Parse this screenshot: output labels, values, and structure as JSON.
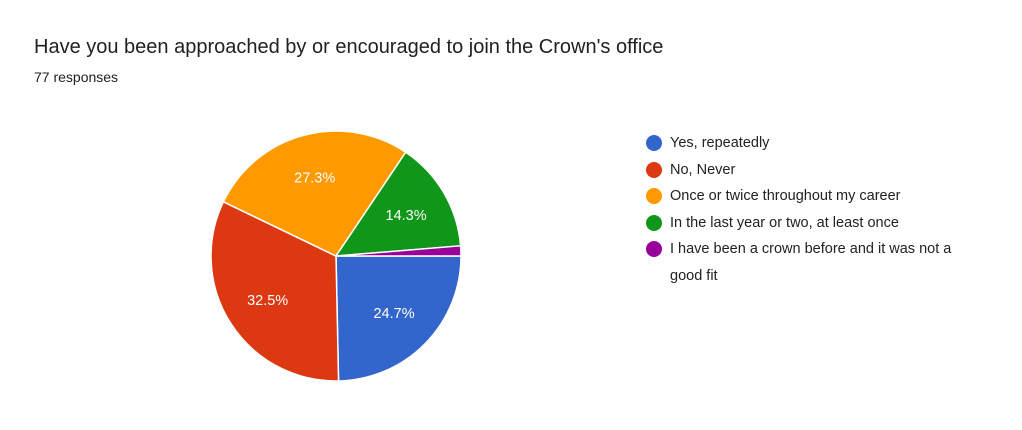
{
  "title": "Have you been approached by or encouraged to join the Crown's office",
  "subtitle": "77 responses",
  "chart_data": {
    "type": "pie",
    "start_angle": "3 o'clock, clockwise",
    "legend_position": "right",
    "slices": [
      {
        "label": "Yes, repeatedly",
        "value": 24.7,
        "display": "24.7%",
        "color": "#3366cc"
      },
      {
        "label": "No, Never",
        "value": 32.5,
        "display": "32.5%",
        "color": "#dc3912"
      },
      {
        "label": "Once or twice throughout my career",
        "value": 27.3,
        "display": "27.3%",
        "color": "#ff9900"
      },
      {
        "label": "In the last year or two, at least once",
        "value": 14.3,
        "display": "14.3%",
        "color": "#109618"
      },
      {
        "label": "I have been a crown before and it was not a good fit",
        "value": 1.3,
        "display": "",
        "color": "#990099"
      }
    ]
  }
}
